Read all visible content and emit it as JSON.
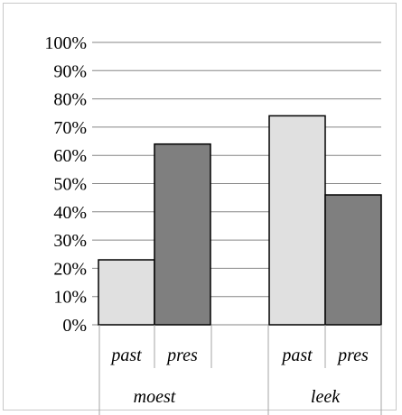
{
  "chart_data": {
    "type": "bar",
    "title": "",
    "xlabel": "",
    "ylabel": "",
    "ylim": [
      0,
      100
    ],
    "yticks": [
      "0%",
      "10%",
      "20%",
      "30%",
      "40%",
      "50%",
      "60%",
      "70%",
      "80%",
      "90%",
      "100%"
    ],
    "grid": true,
    "legend": "none",
    "groups": [
      {
        "label": "moest",
        "bars": [
          {
            "label": "past",
            "value": 23,
            "color": "#e0e0e0"
          },
          {
            "label": "pres",
            "value": 64,
            "color": "#7f7f7f"
          }
        ]
      },
      {
        "label": "leek",
        "bars": [
          {
            "label": "past",
            "value": 74,
            "color": "#e0e0e0"
          },
          {
            "label": "pres",
            "value": 46,
            "color": "#7f7f7f"
          }
        ]
      }
    ]
  }
}
